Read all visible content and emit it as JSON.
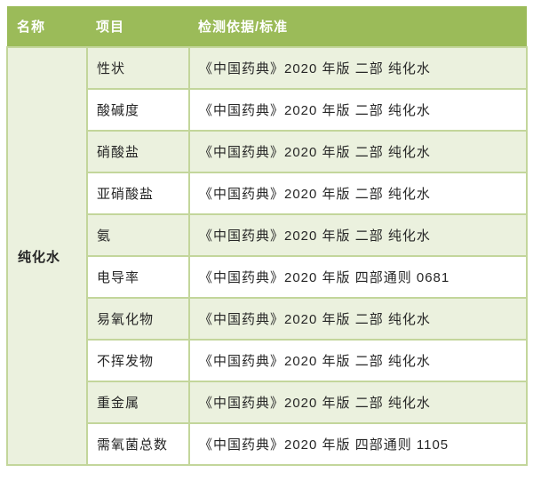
{
  "table": {
    "headers": [
      {
        "label": "名称"
      },
      {
        "label": "项目"
      },
      {
        "label": "检测依据/标准"
      }
    ],
    "merged_name": "纯化水",
    "rows": [
      {
        "item": "性状",
        "standard": "《中国药典》2020 年版 二部 纯化水"
      },
      {
        "item": "酸碱度",
        "standard": "《中国药典》2020 年版 二部 纯化水"
      },
      {
        "item": "硝酸盐",
        "standard": "《中国药典》2020 年版 二部 纯化水"
      },
      {
        "item": "亚硝酸盐",
        "standard": "《中国药典》2020 年版 二部 纯化水"
      },
      {
        "item": "氨",
        "standard": "《中国药典》2020 年版 二部 纯化水"
      },
      {
        "item": "电导率",
        "standard": "《中国药典》2020 年版 四部通则 0681"
      },
      {
        "item": "易氧化物",
        "standard": "《中国药典》2020 年版 二部 纯化水"
      },
      {
        "item": "不挥发物",
        "standard": "《中国药典》2020 年版 二部 纯化水"
      },
      {
        "item": "重金属",
        "standard": "《中国药典》2020 年版 二部 纯化水"
      },
      {
        "item": "需氧菌总数",
        "standard": "《中国药典》2020 年版 四部通则 1105"
      }
    ],
    "colors": {
      "header_bg": "#9BBB59",
      "header_text": "#FFFFFF",
      "band_row_bg": "#EBF1DE",
      "grid_border": "#C3D69B",
      "body_text": "#262626"
    }
  }
}
